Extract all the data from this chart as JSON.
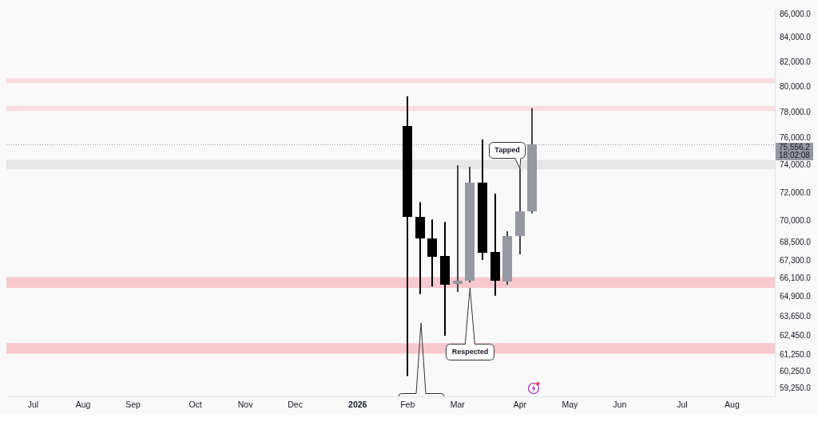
{
  "chart_data": {
    "type": "candlestick",
    "log": true,
    "x": [
      "2026-02-02",
      "2026-02-09",
      "2026-02-16",
      "2026-02-23",
      "2026-03-02",
      "2026-03-09",
      "2026-03-16",
      "2026-03-23",
      "2026-03-30",
      "2026-04-06",
      "2026-04-13"
    ],
    "ohlc": [
      [
        76950,
        79260,
        60000,
        70270
      ],
      [
        70270,
        71330,
        65100,
        68770
      ],
      [
        68820,
        70110,
        65590,
        67560
      ],
      [
        67600,
        69950,
        62450,
        65690
      ],
      [
        65740,
        74000,
        65230,
        65950
      ],
      [
        65950,
        73880,
        65850,
        72730
      ],
      [
        72730,
        75940,
        67350,
        67820
      ],
      [
        67870,
        71940,
        65000,
        65950
      ],
      [
        65950,
        69300,
        65690,
        68980
      ],
      [
        68980,
        73770,
        67720,
        70710
      ],
      [
        70710,
        78330,
        70550,
        75556.2
      ]
    ],
    "colors": [
      "#000000",
      "#000000",
      "#000000",
      "#000000",
      "#9598a1",
      "#9598a1",
      "#000000",
      "#000000",
      "#9598a1",
      "#9598a1",
      "#9598a1"
    ],
    "xlim": [
      "2025-06-22",
      "2026-08-27"
    ],
    "xticks": [
      {
        "value": "2025-07-07",
        "label": "Jul"
      },
      {
        "value": "2025-08-04",
        "label": "Aug"
      },
      {
        "value": "2025-09-01",
        "label": "Sep"
      },
      {
        "value": "2025-10-06",
        "label": "Oct"
      },
      {
        "value": "2025-11-03",
        "label": "Nov"
      },
      {
        "value": "2025-12-01",
        "label": "Dec"
      },
      {
        "value": "2026-01-05",
        "label": "2026"
      },
      {
        "value": "2026-02-02",
        "label": "Feb"
      },
      {
        "value": "2026-03-02",
        "label": "Mar"
      },
      {
        "value": "2026-04-06",
        "label": "Apr"
      },
      {
        "value": "2026-05-04",
        "label": "May"
      },
      {
        "value": "2026-06-01",
        "label": "Jun"
      },
      {
        "value": "2026-07-06",
        "label": "Jul"
      },
      {
        "value": "2026-08-03",
        "label": "Aug"
      }
    ],
    "ylim": [
      58800,
      86400
    ],
    "yticks": [
      {
        "value": 59250,
        "label": "59,250.0"
      },
      {
        "value": 60250,
        "label": "60,250.0"
      },
      {
        "value": 61250,
        "label": "61,250.0"
      },
      {
        "value": 62450,
        "label": "62,450.0"
      },
      {
        "value": 63650,
        "label": "63,650.0"
      },
      {
        "value": 64900,
        "label": "64,900.0"
      },
      {
        "value": 66100,
        "label": "66,100.0"
      },
      {
        "value": 67300,
        "label": "67,300.0"
      },
      {
        "value": 68500,
        "label": "68,500.0"
      },
      {
        "value": 70000,
        "label": "70,000.0"
      },
      {
        "value": 72000,
        "label": "72,000.0"
      },
      {
        "value": 74000,
        "label": "74,000.0"
      },
      {
        "value": 76000,
        "label": "76,000.0"
      },
      {
        "value": 78000,
        "label": "78,000.0"
      },
      {
        "value": 80000,
        "label": "80,000.0"
      },
      {
        "value": 82000,
        "label": "82,000.0"
      },
      {
        "value": 84000,
        "label": "84,000.0"
      },
      {
        "value": 86000,
        "label": "86,000.0"
      }
    ],
    "bands": [
      {
        "axis": "y",
        "from": 80300,
        "to": 80700,
        "color": "#f9dde1"
      },
      {
        "axis": "y",
        "from": 78100,
        "to": 78500,
        "color": "#f9dde1"
      },
      {
        "axis": "y",
        "from": 73700,
        "to": 74400,
        "color": "#e6e6e6"
      },
      {
        "axis": "y",
        "from": 65500,
        "to": 66200,
        "color": "#f7c9ce"
      },
      {
        "axis": "y",
        "from": 61350,
        "to": 62000,
        "color": "#f7c9ce"
      }
    ],
    "ref_lines": [
      {
        "axis": "y",
        "value": 75556.2,
        "label": "75,556.2\n18:02:08",
        "color": "#9598a1",
        "line_style": "dotted"
      }
    ],
    "annotations": [
      {
        "text": "Tapped",
        "x": "2026-04-06",
        "y": 73770
      },
      {
        "text": "Respected",
        "x": "2026-03-09",
        "y": 65500
      }
    ]
  }
}
